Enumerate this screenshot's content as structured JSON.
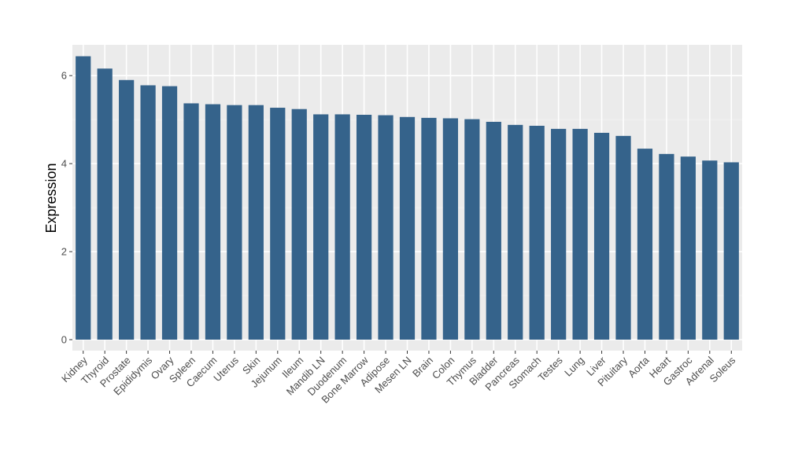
{
  "chart_data": {
    "type": "bar",
    "title": "",
    "xlabel": "",
    "ylabel": "Expression",
    "ylim": [
      -0.25,
      6.7
    ],
    "yticks": [
      0,
      2,
      4,
      6
    ],
    "grid": true,
    "colors": {
      "bar": "#35638b",
      "panel": "#ebebeb",
      "grid_major": "#ffffff",
      "grid_minor": "#f4f4f4"
    },
    "categories": [
      "Kidney",
      "Thyroid",
      "Prostate",
      "Epididymis",
      "Ovary",
      "Spleen",
      "Caecum",
      "Uterus",
      "Skin",
      "Jejunum",
      "Ileum",
      "Mandib LN",
      "Duodenum",
      "Bone Marrow",
      "Adipose",
      "Mesen LN",
      "Brain",
      "Colon",
      "Thymus",
      "Bladder",
      "Pancreas",
      "Stomach",
      "Testes",
      "Lung",
      "Liver",
      "Pituitary",
      "Aorta",
      "Heart",
      "Gastroc",
      "Adrenal",
      "Soleus"
    ],
    "values": [
      6.44,
      6.16,
      5.9,
      5.78,
      5.76,
      5.37,
      5.35,
      5.33,
      5.33,
      5.27,
      5.24,
      5.12,
      5.12,
      5.11,
      5.1,
      5.06,
      5.04,
      5.03,
      5.01,
      4.95,
      4.88,
      4.86,
      4.79,
      4.79,
      4.7,
      4.63,
      4.34,
      4.22,
      4.16,
      4.07,
      4.03
    ]
  }
}
